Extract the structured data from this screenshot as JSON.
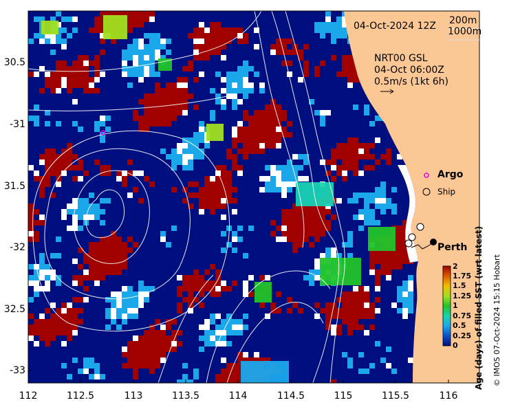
{
  "map": {
    "date_title": "04-Oct-2024 12Z",
    "contour_legend": [
      "200m",
      "1000m"
    ],
    "current_box": {
      "source": "NRT00 GSL",
      "time": "04-Oct 06:00Z",
      "scale": "0.5m/s (1kt 6h)"
    },
    "argo_label": "Argo",
    "ship_label": "Ship",
    "city_label": "Perth",
    "lon_ticks": [
      "112",
      "112.5",
      "113",
      "113.5",
      "114",
      "114.5",
      "115",
      "115.5",
      "116"
    ],
    "lat_ticks": [
      "30.5",
      "-31",
      "31.5",
      "-32",
      "32.5",
      "-33"
    ],
    "colorbar": {
      "title": "Age (days) of filled SST (wrt latest)",
      "ticks": [
        "2",
        "1.75",
        "1.5",
        "1.25",
        "1",
        "0.75",
        "0.5",
        "0.25",
        "0"
      ]
    },
    "credit": "© IMOS 07-Oct-2024 15:15 Hobart",
    "colors": {
      "land": "#fbc895",
      "deep_navy": "#000f80",
      "dark_red": "#a00000",
      "light_blue": "#1aa8ea",
      "green": "#22c42a",
      "teal": "#19d2b2",
      "contour": "#ffffff",
      "argo": "#e000e0"
    }
  }
}
